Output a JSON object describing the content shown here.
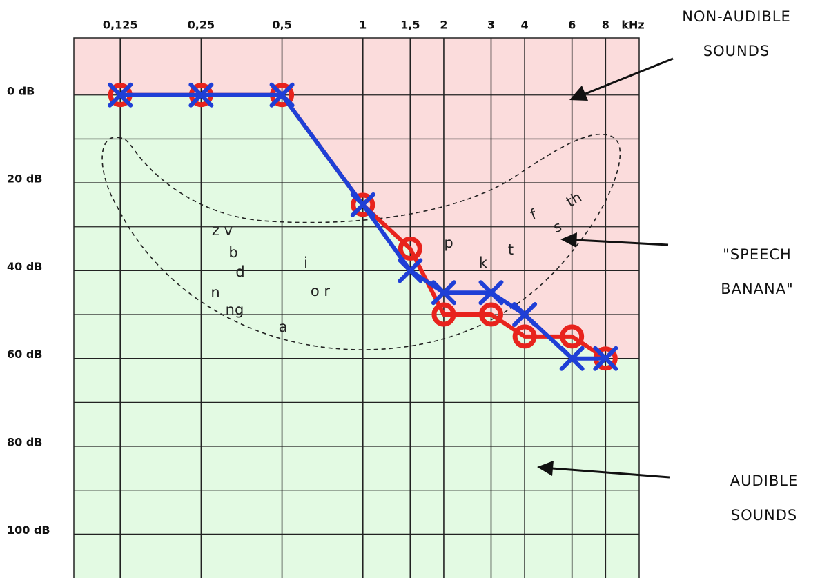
{
  "chart_data": {
    "type": "line",
    "x_unit_label": "kHz",
    "x": [
      0.125,
      0.25,
      0.5,
      1,
      1.5,
      2,
      3,
      4,
      6,
      8
    ],
    "xscale": "log",
    "xlim": [
      0.084,
      10.67
    ],
    "xticks": [
      {
        "value": 0.125,
        "label": "0,125"
      },
      {
        "value": 0.25,
        "label": "0,25"
      },
      {
        "value": 0.5,
        "label": "0,5"
      },
      1,
      {
        "value": 1.5,
        "label": "1,5"
      },
      2,
      3,
      4,
      6,
      8
    ],
    "ylim": [
      -13,
      110
    ],
    "y_inverted": true,
    "yticks": [
      {
        "value": 0,
        "label": "0 dB"
      },
      {
        "value": 20,
        "label": "20 dB"
      },
      {
        "value": 40,
        "label": "40 dB"
      },
      {
        "value": 60,
        "label": "60 dB"
      },
      {
        "value": 80,
        "label": "80 dB"
      },
      {
        "value": 100,
        "label": "100 dB"
      }
    ],
    "yticks_minor": [
      10,
      30,
      50,
      70,
      90
    ],
    "grid": true,
    "series": [
      {
        "color": "#e8231d",
        "marker": "circle",
        "values": [
          0,
          0,
          0,
          25,
          35,
          50,
          50,
          55,
          55,
          60
        ]
      },
      {
        "color": "#1f3fd6",
        "marker": "x",
        "values": [
          0,
          0,
          0,
          25,
          40,
          45,
          45,
          50,
          60,
          60
        ]
      }
    ],
    "region_colors": {
      "non_audible": "#fbdcdc",
      "audible": "#e3fae3"
    },
    "annotations": {
      "non_audible": [
        "NON-AUDIBLE",
        "SOUNDS"
      ],
      "speech_banana": [
        "\"SPEECH",
        "BANANA\""
      ],
      "audible": [
        "AUDIBLE",
        "SOUNDS"
      ],
      "phonemes": [
        "z v",
        "b",
        "d",
        "n",
        "ng",
        "a",
        "i",
        "o r",
        "p",
        "k",
        "t",
        "f",
        "s",
        "th"
      ]
    }
  }
}
